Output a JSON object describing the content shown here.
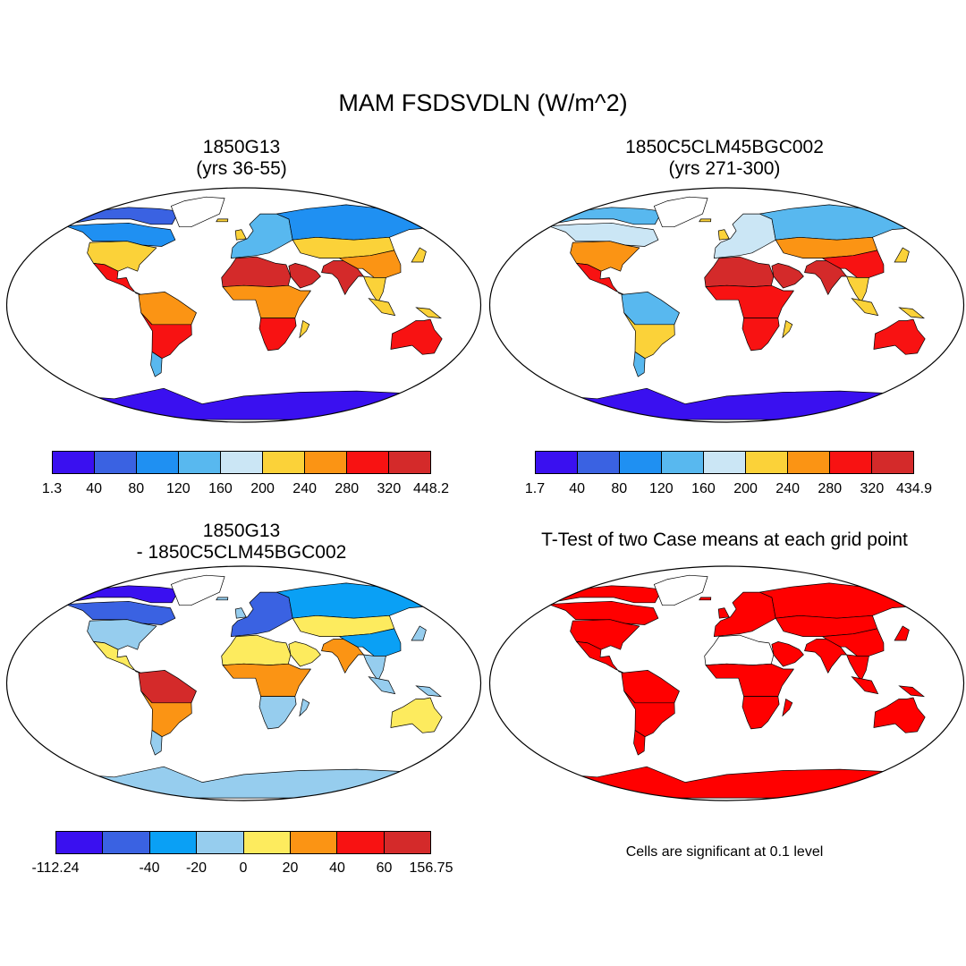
{
  "figure": {
    "title": "MAM FSDSVDLN (W/m^2)",
    "note": "Cells are significant at 0.1 level"
  },
  "panels": [
    {
      "id": "case1",
      "title_line1": "1850G13",
      "title_line2": "(yrs 36-55)",
      "colorbar": {
        "colors": [
          "#3a10f0",
          "#3a62e2",
          "#1f90f2",
          "#58b8ef",
          "#cbe6f5",
          "#fbd239",
          "#fb9414",
          "#f81212",
          "#d42a2a"
        ],
        "labels": [
          "1.3",
          "40",
          "80",
          "120",
          "160",
          "200",
          "240",
          "280",
          "320",
          "448.2"
        ]
      },
      "regions": {
        "arctic": "#3a62e2",
        "canada": "#1f90f2",
        "usa": "#fbd239",
        "mexico": "#f81212",
        "amazon": "#fb9414",
        "south_sa": "#f81212",
        "patagonia": "#58b8ef",
        "europe": "#58b8ef",
        "siberia": "#1f90f2",
        "central_asia": "#fbd239",
        "sahara": "#d42a2a",
        "west_africa": "#fb9414",
        "south_africa": "#f81212",
        "arabia": "#d42a2a",
        "india": "#d42a2a",
        "china": "#fb9414",
        "se_asia": "#fbd239",
        "australia": "#f81212",
        "greenland": "#ffffff",
        "antarctica": "#3a10f0"
      }
    },
    {
      "id": "case2",
      "title_line1": "1850C5CLM45BGC002",
      "title_line2": "(yrs 271-300)",
      "colorbar": {
        "colors": [
          "#3a10f0",
          "#3a62e2",
          "#1f90f2",
          "#58b8ef",
          "#cbe6f5",
          "#fbd239",
          "#fb9414",
          "#f81212",
          "#d42a2a"
        ],
        "labels": [
          "1.7",
          "40",
          "80",
          "120",
          "160",
          "200",
          "240",
          "280",
          "320",
          "434.9"
        ]
      },
      "regions": {
        "arctic": "#58b8ef",
        "canada": "#cbe6f5",
        "usa": "#fb9414",
        "mexico": "#f81212",
        "amazon": "#58b8ef",
        "south_sa": "#fbd239",
        "patagonia": "#58b8ef",
        "europe": "#cbe6f5",
        "siberia": "#58b8ef",
        "central_asia": "#fb9414",
        "sahara": "#d42a2a",
        "west_africa": "#f81212",
        "south_africa": "#f81212",
        "arabia": "#d42a2a",
        "india": "#d42a2a",
        "china": "#f81212",
        "se_asia": "#fbd239",
        "australia": "#f81212",
        "greenland": "#ffffff",
        "antarctica": "#3a10f0"
      }
    },
    {
      "id": "diff",
      "title_line1": "1850G13",
      "title_line2": "- 1850C5CLM45BGC002",
      "colorbar": {
        "colors": [
          "#3a10f0",
          "#3a62e2",
          "#0aa0f5",
          "#96cdee",
          "#fdeb5e",
          "#fb9414",
          "#f81212",
          "#d42a2a"
        ],
        "labels": [
          "-112.24",
          "-40",
          "-20",
          "0",
          "20",
          "40",
          "60",
          "156.75"
        ],
        "label_positions": [
          0,
          2,
          3,
          4,
          5,
          6,
          7,
          8
        ]
      },
      "regions": {
        "arctic": "#3a10f0",
        "canada": "#3a62e2",
        "usa": "#96cdee",
        "mexico": "#fdeb5e",
        "amazon": "#d42a2a",
        "south_sa": "#fb9414",
        "patagonia": "#96cdee",
        "europe": "#3a62e2",
        "siberia": "#0aa0f5",
        "central_asia": "#fdeb5e",
        "sahara": "#fdeb5e",
        "west_africa": "#fb9414",
        "south_africa": "#96cdee",
        "arabia": "#fdeb5e",
        "india": "#fb9414",
        "china": "#0aa0f5",
        "se_asia": "#96cdee",
        "australia": "#fdeb5e",
        "greenland": "#ffffff",
        "antarctica": "#96cdee"
      }
    },
    {
      "id": "ttest",
      "title_line1": "T-Test of two Case means at each grid point",
      "title_line2": "",
      "regions": {
        "arctic": "#ff0000",
        "canada": "#ff0000",
        "usa": "#ff0000",
        "mexico": "#ff0000",
        "amazon": "#ff0000",
        "south_sa": "#ff0000",
        "patagonia": "#ff0000",
        "europe": "#ff0000",
        "siberia": "#ff0000",
        "central_asia": "#ff0000",
        "sahara": "#ffffff",
        "west_africa": "#ff0000",
        "south_africa": "#ff0000",
        "arabia": "#ff0000",
        "india": "#ff0000",
        "china": "#ff0000",
        "se_asia": "#ff0000",
        "australia": "#ff0000",
        "greenland": "#ffffff",
        "antarctica": "#ff0000"
      }
    }
  ]
}
